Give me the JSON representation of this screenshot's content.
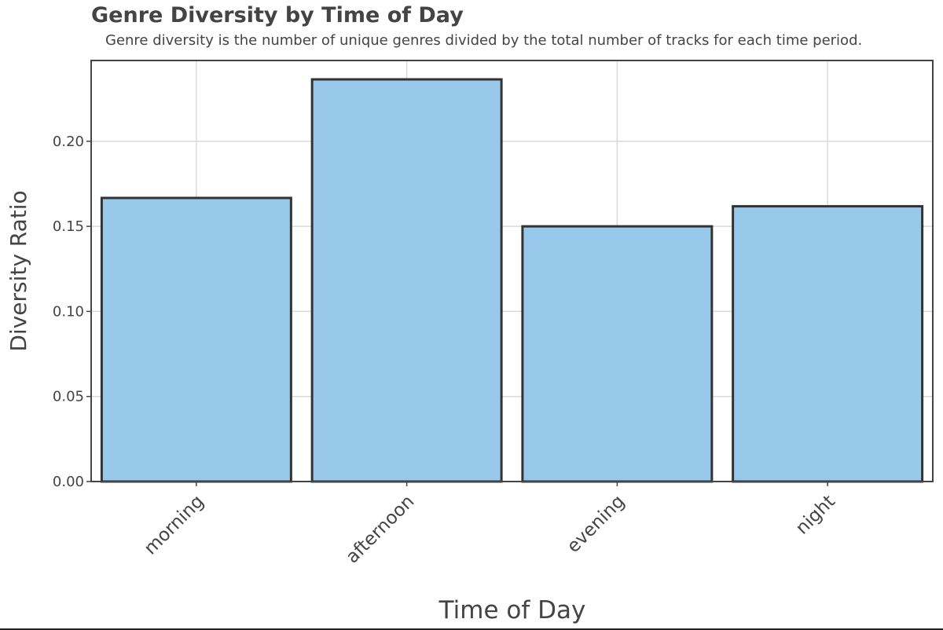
{
  "chart_data": {
    "type": "bar",
    "title": "Genre Diversity by Time of Day",
    "subtitle": "Genre diversity is the number of unique genres divided by the total number of tracks for each time period.",
    "xlabel": "Time of Day",
    "ylabel": "Diversity Ratio",
    "categories": [
      "morning",
      "afternoon",
      "evening",
      "night"
    ],
    "values": [
      0.1667,
      0.2364,
      0.15,
      0.1618
    ],
    "ylim": [
      0,
      0.2475
    ],
    "yticks": [
      0,
      0.05,
      0.1,
      0.15,
      0.2
    ],
    "ytick_labels": [
      "0.00",
      "0.05",
      "0.10",
      "0.15",
      "0.20"
    ],
    "grid": true,
    "legend": "none",
    "colors": {
      "bar_fill": "#98c8ea",
      "bar_stroke": "#333333",
      "grid": "#d9d9d9",
      "axis": "#444444",
      "text": "#444444"
    }
  }
}
